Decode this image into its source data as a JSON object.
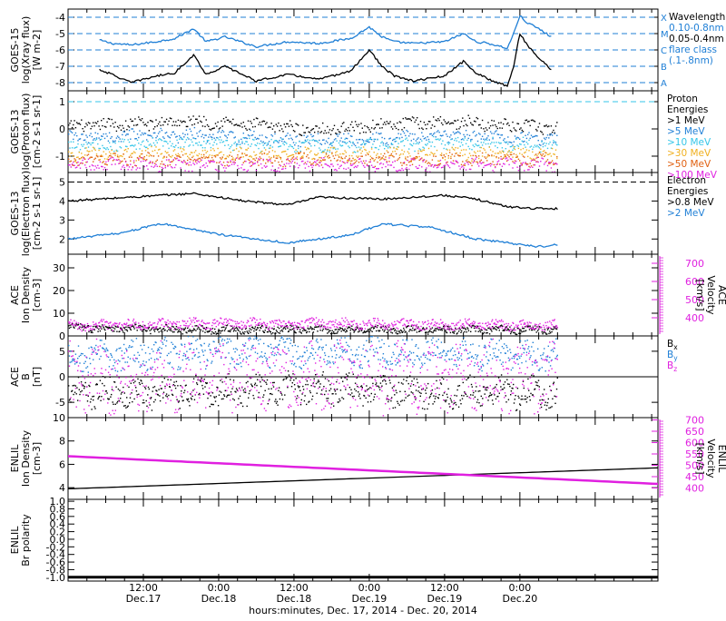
{
  "footer": {
    "xlabel": "hours:minutes, Dec. 17, 2014 - Dec. 20, 2014",
    "ticks": [
      {
        "hour": 12,
        "line1": "12:00",
        "line2": "Dec.17"
      },
      {
        "hour": 24,
        "line1": "0:00",
        "line2": "Dec.18"
      },
      {
        "hour": 36,
        "line1": "12:00",
        "line2": "Dec.18"
      },
      {
        "hour": 48,
        "line1": "0:00",
        "line2": "Dec.19"
      },
      {
        "hour": 60,
        "line1": "12:00",
        "line2": "Dec.19"
      },
      {
        "hour": 72,
        "line1": "0:00",
        "line2": "Dec.20"
      }
    ]
  },
  "chart_data": [
    {
      "id": "xray",
      "type": "line",
      "ylabel": [
        "GOES-15",
        "log(Xray flux)",
        "[W m-2]"
      ],
      "ylim": [
        -8.5,
        -3.5
      ],
      "yticks": [
        -8,
        -7,
        -6,
        -5,
        -4
      ],
      "dashed_levels": [
        {
          "y": -4,
          "label": "X",
          "color": "#1f7fd6"
        },
        {
          "y": -5,
          "label": "M",
          "color": "#1f7fd6"
        },
        {
          "y": -6,
          "label": "C",
          "color": "#1f7fd6"
        },
        {
          "y": -7,
          "label": "B",
          "color": "#1f7fd6"
        },
        {
          "y": -8,
          "label": "A",
          "color": "#1f7fd6"
        }
      ],
      "legend": [
        "Wavelength",
        "0.10-0.8nm",
        "0.05-0.4nm",
        "flare class",
        "(.1-.8nm)"
      ],
      "legend_colors": [
        "#000000",
        "#1f7fd6",
        "#000000",
        "#1f7fd6",
        "#1f7fd6"
      ],
      "series": [
        {
          "name": "0.10-0.8nm",
          "color": "#1f7fd6",
          "x": [
            5,
            7,
            10,
            14,
            17,
            20,
            22,
            25,
            30,
            35,
            40,
            45,
            48,
            50,
            52,
            55,
            60,
            63,
            65,
            67,
            70,
            71,
            72,
            73,
            75,
            77
          ],
          "y": [
            -5.4,
            -5.6,
            -5.7,
            -5.5,
            -5.3,
            -4.7,
            -5.5,
            -5.2,
            -5.8,
            -5.5,
            -5.6,
            -5.3,
            -4.6,
            -5.2,
            -5.5,
            -5.6,
            -5.5,
            -5.0,
            -5.5,
            -5.6,
            -5.9,
            -5.0,
            -3.9,
            -4.3,
            -4.7,
            -5.2
          ]
        },
        {
          "name": "0.05-0.4nm",
          "color": "#000000",
          "x": [
            5,
            7,
            10,
            14,
            17,
            20,
            22,
            25,
            30,
            35,
            40,
            45,
            48,
            50,
            52,
            55,
            60,
            63,
            65,
            67,
            70,
            71,
            72,
            73,
            75,
            77
          ],
          "y": [
            -7.2,
            -7.5,
            -8.0,
            -7.6,
            -7.4,
            -6.3,
            -7.5,
            -7.0,
            -7.9,
            -7.5,
            -7.8,
            -7.3,
            -6.0,
            -7.0,
            -7.6,
            -7.9,
            -7.6,
            -6.7,
            -7.4,
            -7.8,
            -8.2,
            -7.0,
            -5.0,
            -5.6,
            -6.5,
            -7.2
          ]
        }
      ]
    },
    {
      "id": "proton",
      "type": "scatter",
      "ylabel": [
        "GOES-13",
        "log(Proton flux)",
        "[cm-2 s-1 sr-1]"
      ],
      "ylim": [
        -1.6,
        1.4
      ],
      "yticks": [
        -1,
        0,
        1
      ],
      "dashed_levels": [
        {
          "y": 1,
          "label": "",
          "color": "#35c6e8"
        }
      ],
      "legend": [
        "Proton",
        "Energies",
        ">1 MeV",
        ">5 MeV",
        ">10 MeV",
        ">30 MeV",
        ">50 MeV",
        ">100 MeV"
      ],
      "legend_colors": [
        "#000000",
        "#000000",
        "#000000",
        "#1f7fd6",
        "#35c6e8",
        "#f0b020",
        "#e06010",
        "#e020e0"
      ],
      "series": [
        {
          "name": ">1 MeV",
          "color": "#000000",
          "x": [
            0,
            20,
            40,
            60,
            80
          ],
          "y": [
            0.1,
            0.3,
            0.0,
            0.3,
            0.0
          ]
        },
        {
          "name": ">5 MeV",
          "color": "#1f7fd6",
          "x": [
            0,
            20,
            40,
            60,
            80
          ],
          "y": [
            -0.3,
            -0.2,
            -0.4,
            -0.2,
            -0.4
          ]
        },
        {
          "name": ">10 MeV",
          "color": "#35c6e8",
          "x": [
            0,
            20,
            40,
            60,
            80
          ],
          "y": [
            -0.6,
            -0.5,
            -0.6,
            -0.5,
            -0.6
          ]
        },
        {
          "name": ">30 MeV",
          "color": "#f0b020",
          "x": [
            0,
            20,
            40,
            60,
            80
          ],
          "y": [
            -0.9,
            -0.9,
            -0.9,
            -0.9,
            -0.9
          ]
        },
        {
          "name": ">50 MeV",
          "color": "#e06010",
          "x": [
            0,
            20,
            40,
            60,
            80
          ],
          "y": [
            -1.1,
            -1.1,
            -1.1,
            -1.1,
            -1.1
          ]
        },
        {
          "name": ">100 MeV",
          "color": "#e020e0",
          "x": [
            0,
            20,
            40,
            60,
            80
          ],
          "y": [
            -1.3,
            -1.3,
            -1.3,
            -1.3,
            -1.3
          ]
        }
      ]
    },
    {
      "id": "electron",
      "type": "line",
      "ylabel": [
        "GOES-13",
        "log(Electron flux)",
        "[cm-2 s-1 sr-1]"
      ],
      "ylim": [
        1.2,
        5.5
      ],
      "yticks": [
        2,
        3,
        4,
        5
      ],
      "dashed_levels": [
        {
          "y": 5,
          "label": "",
          "color": "#000000"
        }
      ],
      "legend": [
        "Electron",
        "Energies",
        ">0.8 MeV",
        ">2 MeV"
      ],
      "legend_colors": [
        "#000000",
        "#000000",
        "#000000",
        "#1f7fd6"
      ],
      "series": [
        {
          "name": ">0.8 MeV",
          "color": "#000000",
          "x": [
            0,
            10,
            20,
            28,
            35,
            40,
            50,
            60,
            65,
            70,
            75,
            78
          ],
          "y": [
            4.0,
            4.2,
            4.4,
            4.0,
            3.8,
            4.2,
            4.1,
            4.3,
            4.1,
            3.7,
            3.6,
            3.6
          ]
        },
        {
          "name": ">2 MeV",
          "color": "#1f7fd6",
          "x": [
            0,
            8,
            15,
            25,
            35,
            45,
            50,
            58,
            65,
            70,
            75,
            78
          ],
          "y": [
            2.0,
            2.3,
            2.8,
            2.2,
            1.8,
            2.2,
            2.8,
            2.6,
            2.0,
            1.8,
            1.6,
            1.7
          ]
        }
      ]
    },
    {
      "id": "ace_plasma",
      "type": "scatter",
      "ylabel": [
        "ACE",
        "Ion Density",
        "[cm-3]"
      ],
      "y2label": [
        "ACE",
        "Velocity",
        "[km/s]"
      ],
      "ylim": [
        0,
        36
      ],
      "yticks": [
        0,
        10,
        20,
        30
      ],
      "y2lim": [
        300,
        750
      ],
      "y2ticks": [
        400,
        500,
        600,
        700
      ],
      "series": [
        {
          "name": "Density",
          "color": "#000000",
          "axis": "left",
          "x": [
            0,
            20,
            40,
            60,
            80
          ],
          "y": [
            4,
            3,
            3,
            3,
            3
          ]
        },
        {
          "name": "Velocity",
          "color": "#e020e0",
          "axis": "right",
          "x": [
            0,
            20,
            40,
            60,
            80
          ],
          "y": [
            360,
            370,
            370,
            365,
            360
          ]
        }
      ]
    },
    {
      "id": "ace_mag",
      "type": "scatter",
      "ylabel": [
        "ACE",
        "B",
        "[nT]"
      ],
      "ylim": [
        -8,
        8
      ],
      "yticks": [
        -5,
        0,
        5
      ],
      "zero_line": true,
      "legend": [
        "B",
        "B",
        "B"
      ],
      "legend_subs": [
        "x",
        "y",
        "z"
      ],
      "legend_colors": [
        "#000000",
        "#1f7fd6",
        "#e020e0"
      ],
      "series": [
        {
          "name": "Bx",
          "color": "#000000",
          "x": [
            0,
            20,
            40,
            60,
            80
          ],
          "y": [
            -3,
            -3,
            -2,
            -3,
            -3
          ]
        },
        {
          "name": "By",
          "color": "#1f7fd6",
          "x": [
            0,
            20,
            40,
            60,
            80
          ],
          "y": [
            4,
            5,
            5,
            5,
            4
          ]
        },
        {
          "name": "Bz",
          "color": "#e020e0",
          "x": [
            0,
            20,
            40,
            60,
            80
          ],
          "y": [
            0,
            0,
            0,
            0,
            0
          ]
        }
      ]
    },
    {
      "id": "enlil_plasma",
      "type": "line",
      "ylabel": [
        "ENLIL",
        "Ion Density",
        "[cm-3]"
      ],
      "y2label": [
        "ENLIL",
        "Velocity",
        "[km/s]"
      ],
      "ylim": [
        3,
        10
      ],
      "yticks": [
        4,
        6,
        8,
        10
      ],
      "y2lim": [
        350,
        710
      ],
      "y2ticks": [
        400,
        450,
        500,
        550,
        600,
        650,
        700
      ],
      "series": [
        {
          "name": "Density",
          "color": "#000000",
          "axis": "left",
          "x": [
            0,
            94
          ],
          "y": [
            3.9,
            5.7
          ]
        },
        {
          "name": "Velocity",
          "color": "#e020e0",
          "axis": "right",
          "x": [
            0,
            94
          ],
          "y": [
            540,
            418
          ]
        }
      ]
    },
    {
      "id": "enlil_polarity",
      "type": "line",
      "ylabel": [
        "ENLIL",
        "Br polarity"
      ],
      "ylim": [
        -1.1,
        1.05
      ],
      "yticks": [
        -1.0,
        -0.8,
        -0.6,
        -0.4,
        -0.2,
        0.0,
        0.2,
        0.4,
        0.6,
        0.8,
        1.0
      ],
      "tick_decimals": 1,
      "series": [
        {
          "name": "Polarity",
          "color": "#000000",
          "x": [
            0,
            94
          ],
          "y": [
            -1.0,
            -1.0
          ]
        }
      ]
    }
  ]
}
